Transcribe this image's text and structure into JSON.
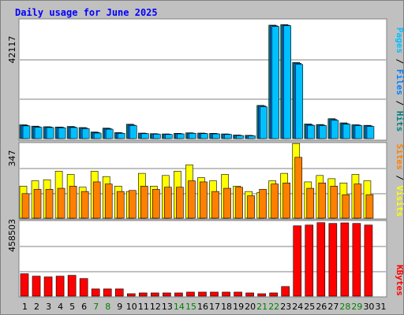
{
  "title": "Daily usage for June 2025",
  "colors": {
    "background": "#c0c0c0",
    "panel": "#ffffff",
    "grid": "#808080",
    "pages": "#00c0ff",
    "files": "#0080ff",
    "hits": "#008080",
    "visits": "#ffff00",
    "sites": "#ff8000",
    "kbytes": "#ff0000",
    "weekday": "#000000",
    "weekend": "#008000"
  },
  "chart_data": [
    {
      "type": "bar",
      "panel": "hits-files-pages",
      "categories": [
        "1",
        "2",
        "3",
        "4",
        "5",
        "6",
        "7",
        "8",
        "9",
        "10",
        "11",
        "12",
        "13",
        "14",
        "15",
        "16",
        "17",
        "18",
        "19",
        "20",
        "21",
        "22",
        "23",
        "24",
        "25",
        "26",
        "27",
        "28",
        "29",
        "30",
        "31"
      ],
      "y_label": "42117",
      "ylim": [
        0,
        42117
      ],
      "legend": [
        "Pages",
        "Files",
        "Hits"
      ],
      "series": [
        {
          "name": "Hits",
          "values": [
            5000,
            4500,
            4300,
            4200,
            4400,
            4000,
            2400,
            3800,
            2200,
            5200,
            2000,
            1800,
            1700,
            1900,
            2100,
            2000,
            1900,
            1700,
            1300,
            1200,
            12000,
            41000,
            41200,
            27500,
            5300,
            5100,
            7200,
            5700,
            5000,
            4800,
            0
          ]
        },
        {
          "name": "Files",
          "values": [
            4800,
            4300,
            4200,
            4100,
            4200,
            3800,
            2200,
            3600,
            2000,
            4900,
            1900,
            1700,
            1600,
            1800,
            2000,
            1900,
            1800,
            1600,
            1200,
            1100,
            11800,
            40800,
            41000,
            27200,
            5000,
            4900,
            6900,
            5400,
            4900,
            4600,
            0
          ]
        },
        {
          "name": "Pages",
          "values": [
            4600,
            4100,
            4000,
            3900,
            4000,
            3600,
            2000,
            3400,
            1900,
            4700,
            1800,
            1600,
            1500,
            1700,
            1900,
            1800,
            1700,
            1500,
            1100,
            1000,
            11500,
            40500,
            40800,
            26800,
            4800,
            4700,
            6600,
            5200,
            4700,
            4400,
            0
          ]
        }
      ]
    },
    {
      "type": "bar",
      "panel": "visits-sites",
      "categories": [
        "1",
        "2",
        "3",
        "4",
        "5",
        "6",
        "7",
        "8",
        "9",
        "10",
        "11",
        "12",
        "13",
        "14",
        "15",
        "16",
        "17",
        "18",
        "19",
        "20",
        "21",
        "22",
        "23",
        "24",
        "25",
        "26",
        "27",
        "28",
        "29",
        "30",
        "31"
      ],
      "y_label": "347",
      "ylim": [
        0,
        347
      ],
      "legend": [
        "Sites",
        "Visits"
      ],
      "series": [
        {
          "name": "Visits",
          "values": [
            150,
            175,
            180,
            220,
            205,
            145,
            220,
            195,
            150,
            125,
            210,
            150,
            200,
            220,
            250,
            190,
            175,
            205,
            150,
            125,
            120,
            175,
            210,
            350,
            170,
            200,
            185,
            165,
            205,
            175,
            0
          ]
        },
        {
          "name": "Sites",
          "values": [
            115,
            135,
            135,
            140,
            150,
            125,
            170,
            160,
            125,
            130,
            150,
            135,
            145,
            145,
            175,
            170,
            125,
            140,
            145,
            105,
            135,
            160,
            165,
            285,
            140,
            165,
            150,
            110,
            160,
            110,
            0
          ]
        }
      ]
    },
    {
      "type": "bar",
      "panel": "kbytes",
      "categories": [
        "1",
        "2",
        "3",
        "4",
        "5",
        "6",
        "7",
        "8",
        "9",
        "10",
        "11",
        "12",
        "13",
        "14",
        "15",
        "16",
        "17",
        "18",
        "19",
        "20",
        "21",
        "22",
        "23",
        "24",
        "25",
        "26",
        "27",
        "28",
        "29",
        "30",
        "31"
      ],
      "y_label": "458503",
      "ylim": [
        0,
        458503
      ],
      "legend": [
        "KBytes"
      ],
      "series": [
        {
          "name": "KBytes",
          "values": [
            140000,
            125000,
            120000,
            125000,
            130000,
            110000,
            45000,
            45000,
            45000,
            15000,
            20000,
            20000,
            20000,
            20000,
            25000,
            25000,
            25000,
            25000,
            25000,
            20000,
            15000,
            20000,
            60000,
            440000,
            445000,
            460000,
            455000,
            458503,
            455000,
            445000,
            0
          ]
        }
      ]
    }
  ],
  "weekend_days": [
    7,
    8,
    14,
    15,
    21,
    22,
    28,
    29
  ]
}
